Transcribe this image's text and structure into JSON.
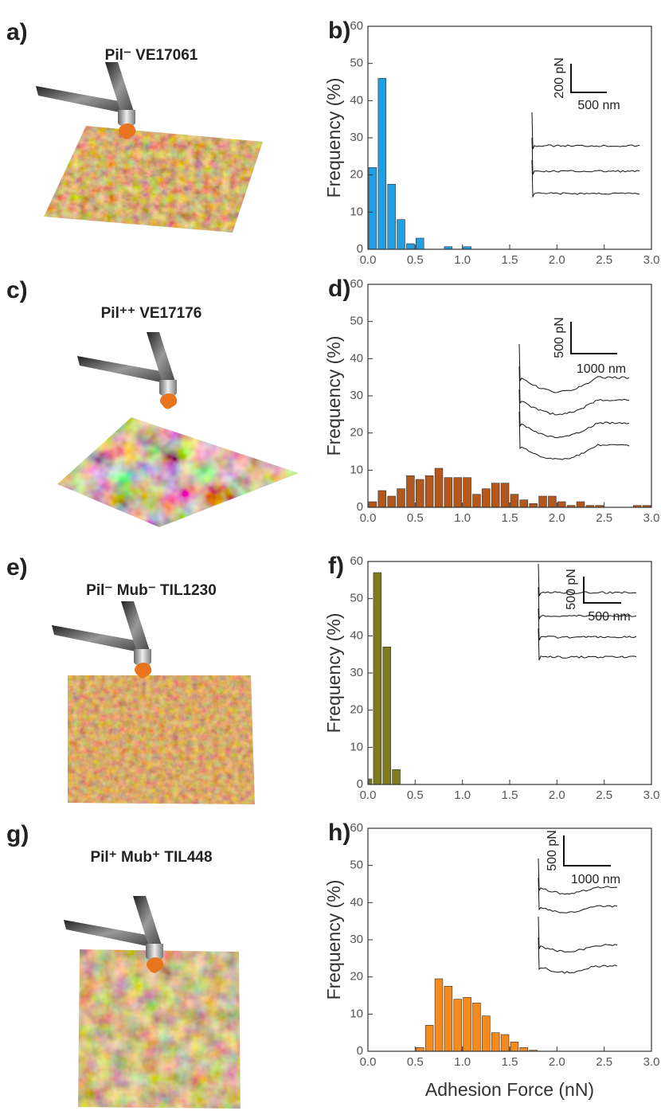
{
  "images": [
    {
      "label": "a)",
      "title": "Pil⁻ VE17061"
    },
    {
      "label": "c)",
      "title": "Pil⁺⁺ VE17176"
    },
    {
      "label": "e)",
      "title": "Pil⁻ Mub⁻ TIL1230"
    },
    {
      "label": "g)",
      "title": "Pil⁺ Mub⁺ TIL448"
    }
  ],
  "chart_data": [
    {
      "type": "histogram",
      "label": "b)",
      "ylabel": "Frequency (%)",
      "color": "#1e9fe6",
      "bins": [
        0,
        0.1,
        0.2,
        0.3,
        0.4,
        0.5,
        0.6,
        0.7,
        0.8,
        0.9,
        1.0,
        1.1
      ],
      "values": [
        22,
        46,
        17.5,
        8,
        1.5,
        3,
        0,
        0,
        0.7,
        0,
        0.7
      ],
      "xlim": [
        0,
        3
      ],
      "ylim": [
        0,
        60
      ],
      "xticks": [
        {
          "value": 0,
          "label": "0.0"
        },
        0.5,
        {
          "value": 1,
          "label": "1.0"
        },
        1.5,
        {
          "value": 2,
          "label": "2.0"
        },
        2.5,
        {
          "value": 3,
          "label": "3.0"
        }
      ],
      "yticks": [
        0,
        10,
        20,
        30,
        40,
        50,
        60
      ],
      "inset_labels": [
        "200 pN",
        "500 nm"
      ]
    },
    {
      "type": "histogram",
      "label": "d)",
      "ylabel": "Frequency (%)",
      "color": "#b5561a",
      "bins": [
        0,
        0.1,
        0.2,
        0.3,
        0.4,
        0.5,
        0.6,
        0.7,
        0.8,
        0.9,
        1.0,
        1.1,
        1.2,
        1.3,
        1.4,
        1.5,
        1.6,
        1.7,
        1.8,
        1.9,
        2.0,
        2.1,
        2.2,
        2.3,
        2.4,
        2.5,
        2.6,
        2.7,
        2.8,
        2.9,
        3.0
      ],
      "values": [
        1.5,
        4.5,
        3,
        5,
        8.5,
        7.5,
        8.5,
        10.5,
        8,
        8,
        8,
        3.5,
        5,
        6.5,
        6.5,
        3.5,
        2,
        1,
        3,
        3,
        1.5,
        0.5,
        1.5,
        0.5,
        0.5,
        0,
        0,
        0,
        0.5,
        0.5
      ],
      "xlim": [
        0,
        3
      ],
      "ylim": [
        0,
        60
      ],
      "xticks": [
        {
          "value": 0,
          "label": "0.0"
        },
        0.5,
        {
          "value": 1,
          "label": "1.0"
        },
        1.5,
        {
          "value": 2,
          "label": "2.0"
        },
        2.5,
        {
          "value": 3,
          "label": "3.0"
        }
      ],
      "yticks": [
        0,
        10,
        20,
        30,
        40,
        50,
        60
      ],
      "inset_labels": [
        "500 pN",
        "1000 nm"
      ]
    },
    {
      "type": "histogram",
      "label": "f)",
      "ylabel": "Frequency (%)",
      "color": "#7f7a1a",
      "bins": [
        0,
        0.05,
        0.15,
        0.25,
        0.35
      ],
      "values": [
        1.5,
        57,
        37,
        4
      ],
      "xlim": [
        0,
        3
      ],
      "ylim": [
        0,
        60
      ],
      "xticks": [
        {
          "value": 0,
          "label": "0.0"
        },
        0.5,
        {
          "value": 1,
          "label": "1.0"
        },
        1.5,
        {
          "value": 2,
          "label": "2.0"
        },
        2.5,
        {
          "value": 3,
          "label": "3.0"
        }
      ],
      "yticks": [
        0,
        10,
        20,
        30,
        40,
        50,
        60
      ],
      "inset_labels": [
        "500 pN",
        "500 nm"
      ]
    },
    {
      "type": "histogram",
      "label": "h)",
      "ylabel": "Frequency (%)",
      "xlabel": "Adhesion Force (nN)",
      "color": "#f58a1f",
      "bins": [
        0.5,
        0.6,
        0.7,
        0.8,
        0.9,
        1.0,
        1.1,
        1.2,
        1.3,
        1.4,
        1.5,
        1.6,
        1.7,
        1.8
      ],
      "values": [
        1,
        7,
        19.5,
        17.5,
        14,
        14.5,
        13,
        9.5,
        5,
        4.5,
        2.5,
        1,
        0.3
      ],
      "xlim": [
        0,
        3
      ],
      "ylim": [
        0,
        60
      ],
      "xticks": [
        {
          "value": 0,
          "label": "0.0"
        },
        0.5,
        {
          "value": 1,
          "label": "1.0"
        },
        1.5,
        {
          "value": 2,
          "label": "2.0"
        },
        2.5,
        {
          "value": 3,
          "label": "3.0"
        }
      ],
      "yticks": [
        0,
        10,
        20,
        30,
        40,
        50,
        60
      ],
      "inset_labels": [
        "500 pN",
        "1000 nm"
      ]
    }
  ]
}
